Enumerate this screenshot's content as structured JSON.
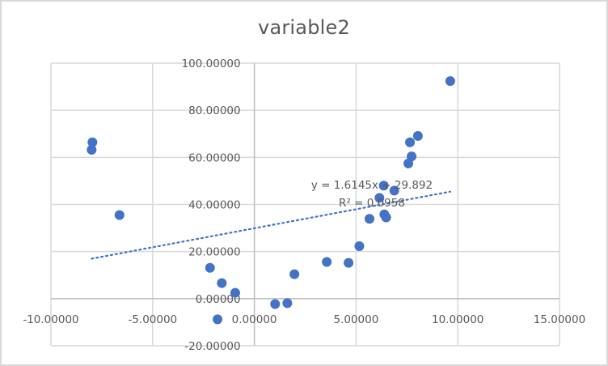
{
  "chart_data": {
    "type": "scatter",
    "title": "variable2",
    "xlabel": "",
    "ylabel": "",
    "xlim": [
      -10,
      15
    ],
    "ylim": [
      -20,
      100
    ],
    "x_ticks": [
      "-10.00000",
      "-5.00000",
      "0.00000",
      "5.00000",
      "10.00000",
      "15.00000"
    ],
    "y_ticks": [
      "-20.00000",
      "0.00000",
      "20.00000",
      "40.00000",
      "60.00000",
      "80.00000",
      "100.00000"
    ],
    "grid": true,
    "legend": null,
    "series": [
      {
        "name": "variable2",
        "color": "#4472c4",
        "points": [
          [
            9.63,
            92.4
          ],
          [
            -7.96,
            66.4
          ],
          [
            -8.0,
            63.2
          ],
          [
            -6.63,
            35.5
          ],
          [
            -2.18,
            13.1
          ],
          [
            -1.6,
            6.6
          ],
          [
            -0.94,
            2.5
          ],
          [
            -1.81,
            -8.8
          ],
          [
            1.02,
            -2.3
          ],
          [
            1.62,
            -1.9
          ],
          [
            1.97,
            10.4
          ],
          [
            3.56,
            15.6
          ],
          [
            4.63,
            15.2
          ],
          [
            5.16,
            22.3
          ],
          [
            5.66,
            33.9
          ],
          [
            6.39,
            35.8
          ],
          [
            6.48,
            34.5
          ],
          [
            6.15,
            42.8
          ],
          [
            6.36,
            48.0
          ],
          [
            6.88,
            45.9
          ],
          [
            7.57,
            57.4
          ],
          [
            7.73,
            60.4
          ],
          [
            7.65,
            66.4
          ],
          [
            8.04,
            69.1
          ]
        ]
      }
    ],
    "trendline": {
      "type": "linear",
      "style": "dotted",
      "color": "#4472c4",
      "slope": 1.6145,
      "intercept": 29.892,
      "x_range": [
        -8.0,
        9.63
      ],
      "equation_label": "y = 1.6145x + 29.892",
      "r2_label": "R² = 0.0958"
    }
  }
}
